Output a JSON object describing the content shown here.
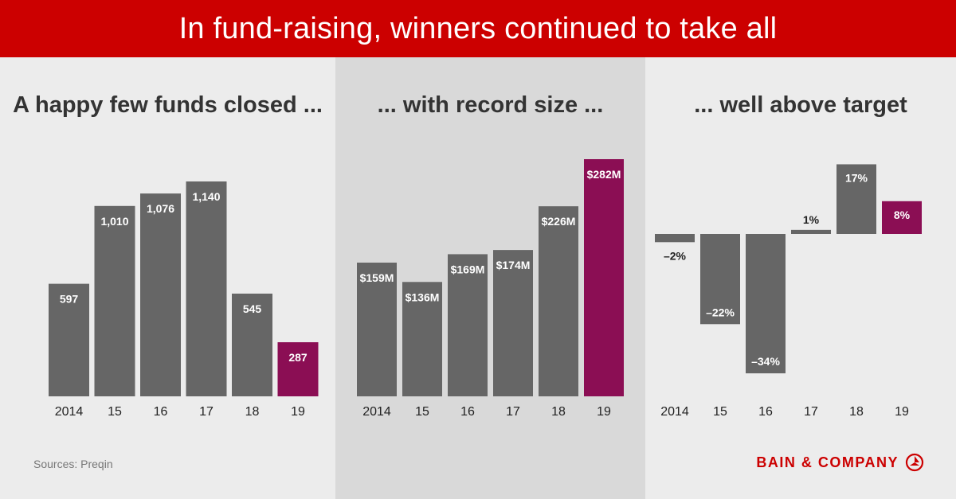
{
  "header": {
    "title": "In fund-raising, winners continued to take all"
  },
  "colors": {
    "banner": "#cc0000",
    "bar": "#666666",
    "highlight": "#8b0e54",
    "logo": "#cc0000"
  },
  "chart_data": [
    {
      "type": "bar",
      "title": "A happy few funds closed ...",
      "categories": [
        "2014",
        "15",
        "16",
        "17",
        "18",
        "19"
      ],
      "values": [
        597,
        1010,
        1076,
        1140,
        545,
        287
      ],
      "labels": [
        "597",
        "1,010",
        "1,076",
        "1,140",
        "545",
        "287"
      ],
      "highlight_index": 5,
      "ylim": [
        0,
        1140
      ]
    },
    {
      "type": "bar",
      "title": "... with record size ...",
      "categories": [
        "2014",
        "15",
        "16",
        "17",
        "18",
        "19"
      ],
      "values": [
        159,
        136,
        169,
        174,
        226,
        282
      ],
      "labels": [
        "$159M",
        "$136M",
        "$169M",
        "$174M",
        "$226M",
        "$282M"
      ],
      "highlight_index": 5,
      "ylim": [
        0,
        282
      ]
    },
    {
      "type": "bar",
      "title": "... well above target",
      "categories": [
        "2014",
        "15",
        "16",
        "17",
        "18",
        "19"
      ],
      "values": [
        -2,
        -22,
        -34,
        1,
        17,
        8
      ],
      "labels": [
        "–2%",
        "–22%",
        "–34%",
        "1%",
        "17%",
        "8%"
      ],
      "highlight_index": 5,
      "ylim": [
        -34,
        17
      ]
    }
  ],
  "footer": {
    "source": "Sources: Preqin",
    "logo_text": "BAIN & COMPANY",
    "logo_icon": "bain-logo-icon"
  }
}
